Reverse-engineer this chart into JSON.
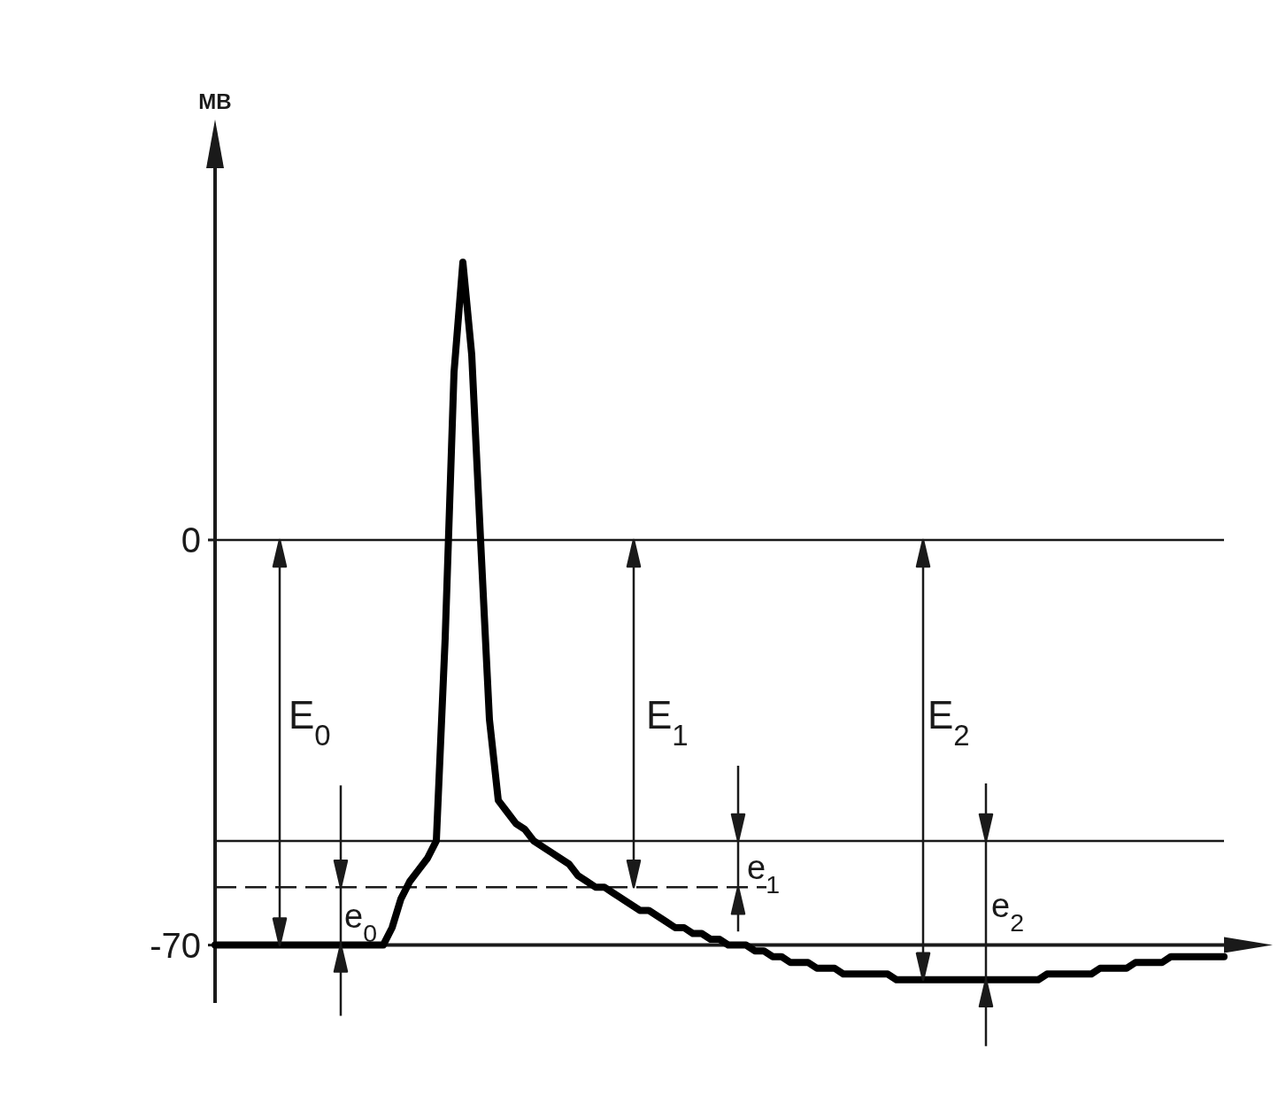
{
  "chart_data": {
    "type": "line",
    "ylabel": "MB",
    "ylim": [
      -80,
      65
    ],
    "yticks": [
      0,
      -70
    ],
    "tick_labels": "y",
    "marker": "none",
    "line_style": "solid",
    "categories": [
      null,
      null,
      null,
      null,
      null,
      null,
      null,
      null,
      null,
      null,
      null,
      null,
      null,
      null,
      null,
      null,
      null,
      null,
      null,
      null,
      null,
      null,
      null,
      null,
      null,
      null,
      null,
      null,
      null,
      null,
      null,
      null,
      null,
      null,
      null,
      null,
      null,
      null,
      null,
      null,
      null,
      null,
      null,
      null,
      null,
      null,
      null,
      null,
      null,
      null,
      null,
      null,
      null,
      null,
      null,
      null,
      null,
      null,
      null,
      null,
      null,
      null,
      null,
      null,
      null,
      null,
      null,
      null,
      null,
      null,
      null,
      null,
      null,
      null,
      null,
      null,
      null,
      null,
      null,
      null,
      null,
      null,
      null,
      null,
      null,
      null,
      null,
      null,
      null,
      null,
      null,
      null,
      null,
      null,
      null,
      null,
      null,
      null,
      null,
      null,
      null,
      null,
      null,
      null,
      null,
      null,
      null,
      null,
      null,
      null,
      null,
      null,
      null,
      null,
      null
    ],
    "series": [
      {
        "color": "#000000",
        "values": [
          -70,
          -70,
          -70,
          -70,
          -70,
          -70,
          -70,
          -70,
          -70,
          -70,
          -70,
          -70,
          -70,
          -70,
          -70,
          -70,
          -70,
          -70,
          -70,
          -70,
          -67,
          -62,
          -59,
          -57,
          -55,
          -52,
          -17,
          29,
          48,
          32,
          0,
          -31,
          -45,
          -47,
          -49,
          -50,
          -52,
          -53,
          -54,
          -55,
          -56,
          -58,
          -59,
          -60,
          -60,
          -61,
          -62,
          -63,
          -64,
          -64,
          -65,
          -66,
          -67,
          -67,
          -68,
          -68,
          -69,
          -69,
          -70,
          -70,
          -70,
          -71,
          -71,
          -72,
          -72,
          -73,
          -73,
          -73,
          -74,
          -74,
          -74,
          -75,
          -75,
          -75,
          -75,
          -75,
          -75,
          -76,
          -76,
          -76,
          -76,
          -76,
          -76,
          -76,
          -76,
          -76,
          -76,
          -76,
          -76,
          -76,
          -76,
          -76,
          -76,
          -76,
          -75,
          -75,
          -75,
          -75,
          -75,
          -75,
          -74,
          -74,
          -74,
          -74,
          -73,
          -73,
          -73,
          -73,
          -72,
          -72,
          -72,
          -72,
          -72,
          -72,
          -72
        ]
      }
    ],
    "ref_lines": [
      {
        "axis": "y",
        "value": 0,
        "color": "#1a1a1a",
        "line_style": "solid"
      },
      {
        "axis": "y",
        "value": -52,
        "color": "#1a1a1a",
        "line_style": "solid"
      },
      {
        "axis": "y",
        "value": -60,
        "color": "#1a1a1a",
        "line_style": "dashed"
      },
      {
        "axis": "y",
        "value": -70,
        "color": "#1a1a1a",
        "line_style": "solid"
      }
    ],
    "annotations": [
      "E$_{0}$",
      "E$_{1}$",
      "E$_{2}$",
      "e$_{0}$",
      "e$_{1}$",
      "e$_{2}$"
    ]
  }
}
